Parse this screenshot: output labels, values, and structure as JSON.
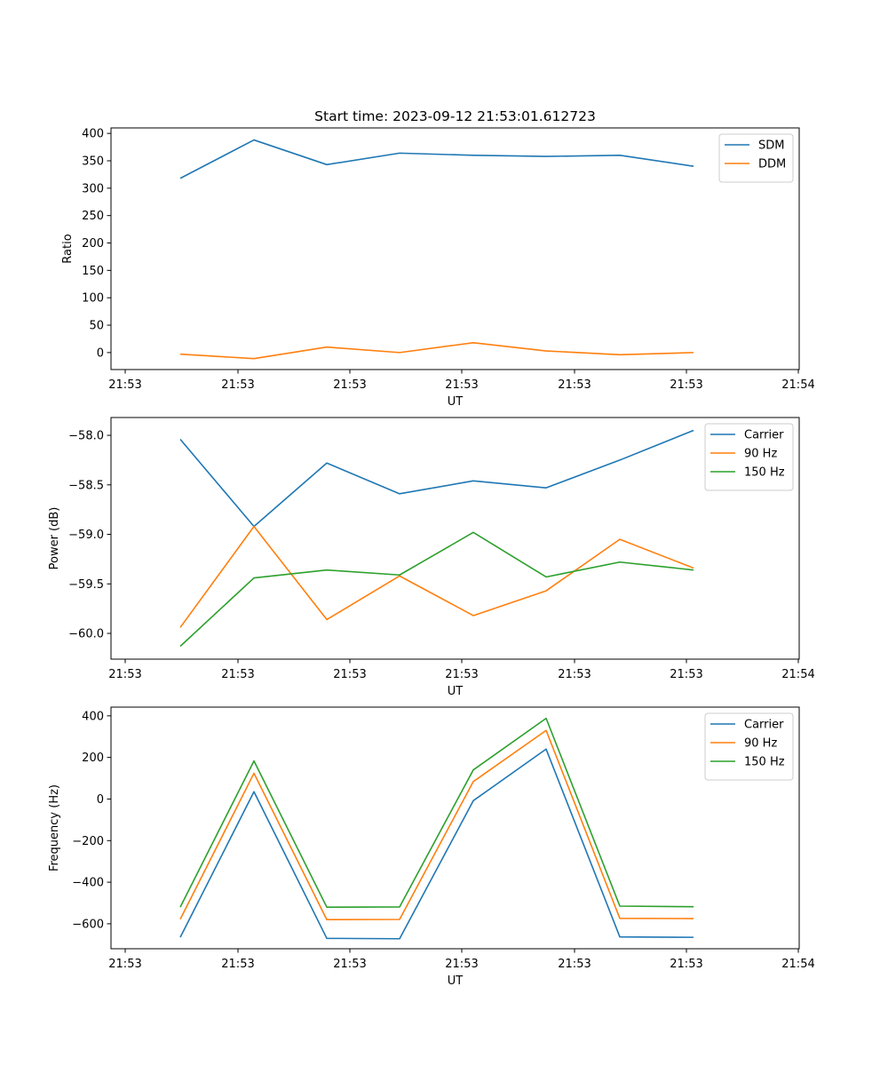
{
  "chart_data": [
    {
      "type": "line",
      "title": "Start time: 2023-09-12 21:53:01.612723",
      "xlabel": "UT",
      "ylabel": "Ratio",
      "xticks": [
        "21:53",
        "21:53",
        "21:53",
        "21:53",
        "21:53",
        "21:53",
        "21:54"
      ],
      "yticks": [
        0,
        50,
        100,
        150,
        200,
        250,
        300,
        350,
        400
      ],
      "ylim": [
        -31,
        410
      ],
      "legend": "top-right",
      "colors": {
        "SDM": "#1f77b4",
        "DDM": "#ff7f0e"
      },
      "series": [
        {
          "name": "SDM",
          "values": [
            318,
            388,
            343,
            364,
            360,
            358,
            360,
            340
          ]
        },
        {
          "name": "DDM",
          "values": [
            -3,
            -11,
            10,
            0,
            18,
            3,
            -4,
            0
          ]
        }
      ]
    },
    {
      "type": "line",
      "title": "",
      "xlabel": "UT",
      "ylabel": "Power (dB)",
      "xticks": [
        "21:53",
        "21:53",
        "21:53",
        "21:53",
        "21:53",
        "21:53",
        "21:54"
      ],
      "yticks": [
        "−58.0",
        "−58.5",
        "−59.0",
        "−59.5",
        "−60.0"
      ],
      "ytick_values": [
        -58.0,
        -58.5,
        -59.0,
        -59.5,
        -60.0
      ],
      "ylim": [
        -60.26,
        -57.82
      ],
      "legend": "top-right",
      "colors": {
        "Carrier": "#1f77b4",
        "90 Hz": "#ff7f0e",
        "150 Hz": "#2ca02c"
      },
      "series": [
        {
          "name": "Carrier",
          "values": [
            -58.04,
            -58.92,
            -58.28,
            -58.59,
            -58.46,
            -58.53,
            -58.25,
            -57.95
          ]
        },
        {
          "name": "90 Hz",
          "values": [
            -59.94,
            -58.92,
            -59.86,
            -59.42,
            -59.82,
            -59.57,
            -59.05,
            -59.34
          ]
        },
        {
          "name": "150 Hz",
          "values": [
            -60.13,
            -59.44,
            -59.36,
            -59.41,
            -58.98,
            -59.43,
            -59.28,
            -59.36
          ]
        }
      ]
    },
    {
      "type": "line",
      "title": "",
      "xlabel": "UT",
      "ylabel": "Frequency (Hz)",
      "xticks": [
        "21:53",
        "21:53",
        "21:53",
        "21:53",
        "21:53",
        "21:53",
        "21:54"
      ],
      "yticks": [
        "400",
        "200",
        "0",
        "−200",
        "−400",
        "−600"
      ],
      "ytick_values": [
        400,
        200,
        0,
        -200,
        -400,
        -600
      ],
      "ylim": [
        -720,
        442
      ],
      "legend": "top-right",
      "colors": {
        "Carrier": "#1f77b4",
        "90 Hz": "#ff7f0e",
        "150 Hz": "#2ca02c"
      },
      "series": [
        {
          "name": "Carrier",
          "values": [
            -665,
            35,
            -670,
            -672,
            -8,
            240,
            -663,
            -665
          ]
        },
        {
          "name": "90 Hz",
          "values": [
            -578,
            124,
            -580,
            -579,
            84,
            330,
            -574,
            -575
          ]
        },
        {
          "name": "150 Hz",
          "values": [
            -520,
            183,
            -520,
            -519,
            140,
            388,
            -515,
            -518
          ]
        }
      ]
    }
  ]
}
